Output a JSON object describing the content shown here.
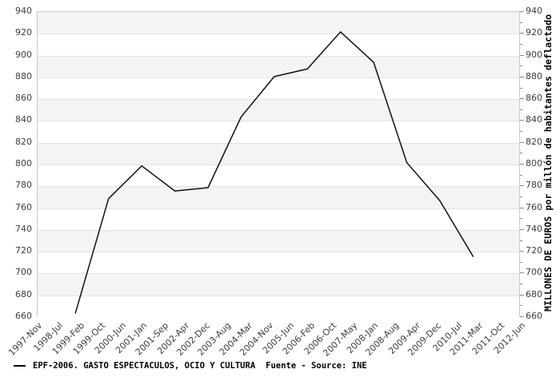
{
  "chart_data": {
    "type": "line",
    "title": "",
    "x_axis": {
      "start_label": "1997-Nov",
      "end_label": "2012-Jun",
      "span_months": 175,
      "tick_labels": [
        "1997-Nov",
        "1998-Jul",
        "1999-Feb",
        "1999-Oct",
        "2000-Jun",
        "2001-Jan",
        "2001-Sep",
        "2002-Apr",
        "2002-Dec",
        "2003-Aug",
        "2004-Mar",
        "2004-Nov",
        "2005-Jun",
        "2006-Feb",
        "2006-Oct",
        "2007-May",
        "2008-Jan",
        "2008-Aug",
        "2009-Apr",
        "2009-Dec",
        "2010-Jul",
        "2011-Mar",
        "2011-Oct",
        "2012-Jun"
      ]
    },
    "y_axis": {
      "min": 660,
      "max": 940,
      "step": 20,
      "minor_step": 10,
      "tick_labels": [
        "940",
        "920",
        "900",
        "880",
        "860",
        "840",
        "820",
        "800",
        "780",
        "760",
        "740",
        "720",
        "700",
        "680",
        "660"
      ],
      "labels_on_both_sides": true
    },
    "right_axis_title": "MILLONES DE EUROS por millón de habitantes deflactado",
    "grid": "horizontal-bands",
    "colors": {
      "line": "#111111",
      "band": "#f4f4f4",
      "gridline": "#e3e3e3",
      "border": "#c9c9c9",
      "tick_text": "#3d3d3d"
    },
    "series": [
      {
        "name": "EPF-2006. GASTO ESPECTACULOS, OCIO Y CULTURA",
        "color": "#111111",
        "points": [
          {
            "year": 1999,
            "value": 663
          },
          {
            "year": 2000,
            "value": 768
          },
          {
            "year": 2001,
            "value": 798
          },
          {
            "year": 2002,
            "value": 775
          },
          {
            "year": 2003,
            "value": 778
          },
          {
            "year": 2004,
            "value": 843
          },
          {
            "year": 2005,
            "value": 880
          },
          {
            "year": 2006,
            "value": 887
          },
          {
            "year": 2007,
            "value": 921
          },
          {
            "year": 2008,
            "value": 893
          },
          {
            "year": 2009,
            "value": 801
          },
          {
            "year": 2010,
            "value": 766
          },
          {
            "year": 2011,
            "value": 715
          }
        ]
      }
    ],
    "legend": {
      "position": "bottom-left",
      "series_label": "EPF-2006. GASTO ESPECTACULOS, OCIO Y CULTURA",
      "source_label": "Fuente - Source: INE"
    }
  }
}
